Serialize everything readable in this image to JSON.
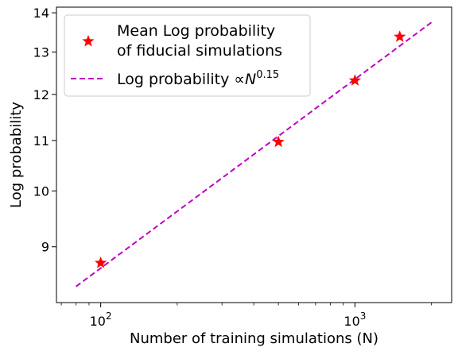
{
  "chart_data": {
    "type": "scatter",
    "xscale": "log",
    "yscale": "log",
    "xlabel": "Number of training simulations (N)",
    "ylabel": "Log probability",
    "xlim": [
      67,
      2400
    ],
    "ylim": [
      8.1,
      14.15
    ],
    "xticks": [
      {
        "value": 100,
        "base": "10",
        "exp": "2"
      },
      {
        "value": 1000,
        "base": "10",
        "exp": "3"
      }
    ],
    "yticks": [
      {
        "value": 9,
        "label": "9"
      },
      {
        "value": 10,
        "label": "10"
      },
      {
        "value": 11,
        "label": "11"
      },
      {
        "value": 12,
        "label": "12"
      },
      {
        "value": 13,
        "label": "13"
      },
      {
        "value": 14,
        "label": "14"
      }
    ],
    "series": [
      {
        "name_line1": "Mean Log probability",
        "name_line2": "of fiducial simulations",
        "kind": "markers",
        "marker": "star",
        "color": "#ff0000",
        "x": [
          100,
          500,
          1000,
          1500
        ],
        "y": [
          8.73,
          10.97,
          12.32,
          13.38
        ]
      },
      {
        "name_prefix": "Log probability  ∝",
        "name_base": "N",
        "name_exp": "0.15",
        "kind": "line",
        "style": "dashed",
        "color": "#bf00bf",
        "exponent": 0.15,
        "x_range": [
          80,
          2000
        ],
        "y_range": [
          8.35,
          13.75
        ]
      }
    ],
    "grid": false,
    "legend": "top-left"
  }
}
